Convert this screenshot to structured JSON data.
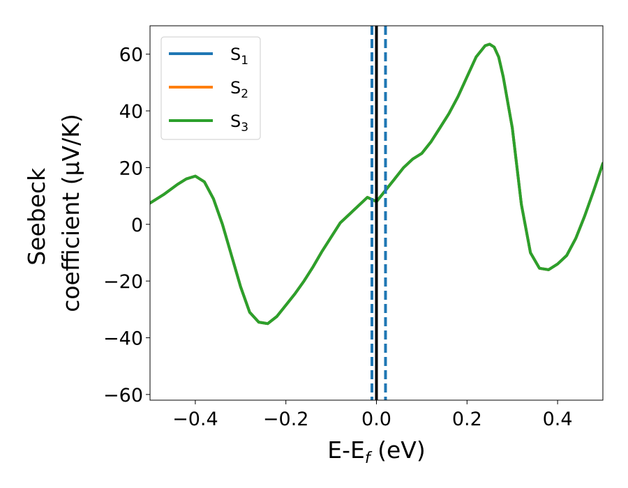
{
  "chart_data": {
    "type": "line",
    "xlabel": {
      "base": "E-E",
      "sub": "f",
      "rest": " (eV)"
    },
    "ylabel": [
      "Seebeck",
      "coefficient  (μV/K)"
    ],
    "xlim": [
      -0.5,
      0.5
    ],
    "ylim": [
      -62,
      70
    ],
    "xticks": [
      -0.4,
      -0.2,
      0.0,
      0.2,
      0.4
    ],
    "xtick_labels": [
      "−0.4",
      "−0.2",
      "0.0",
      "0.2",
      "0.4"
    ],
    "yticks": [
      -60,
      -40,
      -20,
      0,
      20,
      40,
      60
    ],
    "ytick_labels": [
      "−60",
      "−40",
      "−20",
      "0",
      "20",
      "40",
      "60"
    ],
    "legend_position": "top-left",
    "series": [
      {
        "name": "S",
        "sub": "1",
        "color": "#1f77b4"
      },
      {
        "name": "S",
        "sub": "2",
        "color": "#ff7f0e"
      },
      {
        "name": "S",
        "sub": "3",
        "color": "#2ca02c"
      }
    ],
    "x": [
      -0.5,
      -0.47,
      -0.44,
      -0.42,
      -0.4,
      -0.38,
      -0.36,
      -0.34,
      -0.32,
      -0.3,
      -0.28,
      -0.26,
      -0.24,
      -0.22,
      -0.2,
      -0.18,
      -0.16,
      -0.14,
      -0.12,
      -0.1,
      -0.08,
      -0.06,
      -0.04,
      -0.02,
      0.0,
      0.02,
      0.04,
      0.06,
      0.08,
      0.1,
      0.12,
      0.14,
      0.16,
      0.18,
      0.2,
      0.22,
      0.24,
      0.25,
      0.26,
      0.27,
      0.28,
      0.3,
      0.32,
      0.34,
      0.36,
      0.38,
      0.4,
      0.42,
      0.44,
      0.46,
      0.48,
      0.5
    ],
    "y": [
      7.5,
      10.5,
      14,
      16,
      17,
      15,
      9,
      0,
      -11,
      -22,
      -31,
      -34.5,
      -35,
      -32.5,
      -28.5,
      -24.5,
      -20,
      -15,
      -9.5,
      -4.5,
      0.5,
      3.5,
      6.5,
      9.5,
      8,
      12,
      16,
      20,
      23,
      25,
      29,
      34,
      39,
      45,
      52,
      59,
      63,
      63.5,
      62.5,
      59,
      52,
      34,
      7,
      -10,
      -15.5,
      -16,
      -14,
      -11,
      -5,
      3,
      12,
      21.5
    ],
    "vertical_lines": [
      {
        "x": -0.01,
        "style": "dashed",
        "color": "#1f77b4"
      },
      {
        "x": 0.0,
        "style": "solid",
        "color": "#000000"
      },
      {
        "x": 0.02,
        "style": "dashed",
        "color": "#1f77b4"
      }
    ]
  }
}
